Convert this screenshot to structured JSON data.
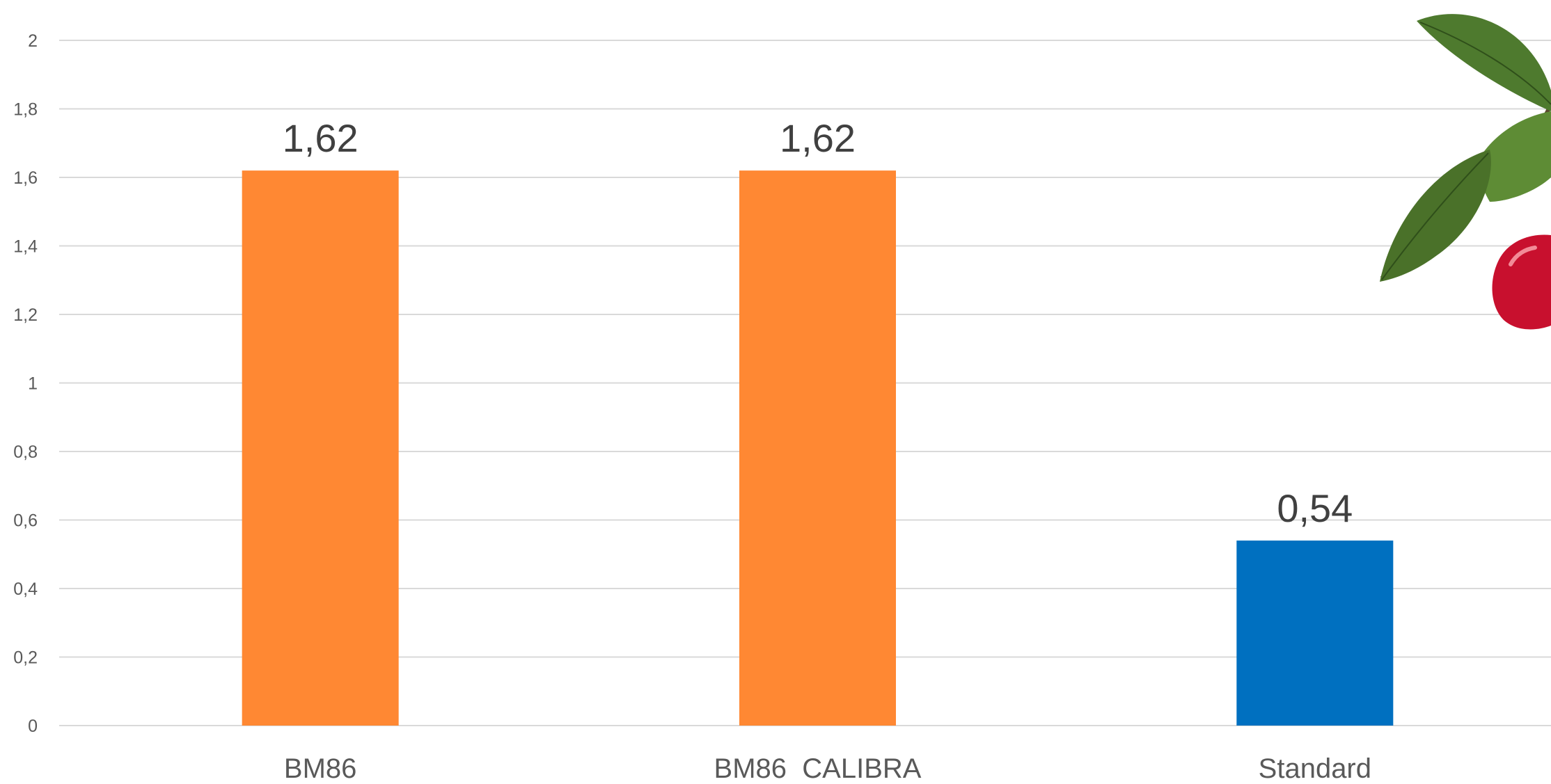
{
  "chart_data": {
    "type": "bar",
    "categories": [
      "BM86",
      "BM86  CALIBRA",
      "Standard"
    ],
    "values": [
      1.62,
      1.62,
      0.54
    ],
    "data_labels": [
      "1,62",
      "1,62",
      "0,54"
    ],
    "bar_colors": [
      "#FF8833",
      "#FF8833",
      "#0070C0"
    ],
    "y_ticks": [
      0,
      0.2,
      0.4,
      0.6,
      0.8,
      1,
      1.2,
      1.4,
      1.6,
      1.8,
      2
    ],
    "y_tick_labels": [
      "0",
      "0,2",
      "0,4",
      "0,6",
      "0,8",
      "1",
      "1,2",
      "1,4",
      "1,6",
      "1,8",
      "2"
    ],
    "ylim": [
      0,
      2
    ],
    "grid": true,
    "legend": "none",
    "title": "",
    "xlabel": "",
    "ylabel": ""
  },
  "decoration": {
    "icon": "apple-branch-icon",
    "leaf_color": "#4E7A2E",
    "apple_color": "#C8102E"
  }
}
